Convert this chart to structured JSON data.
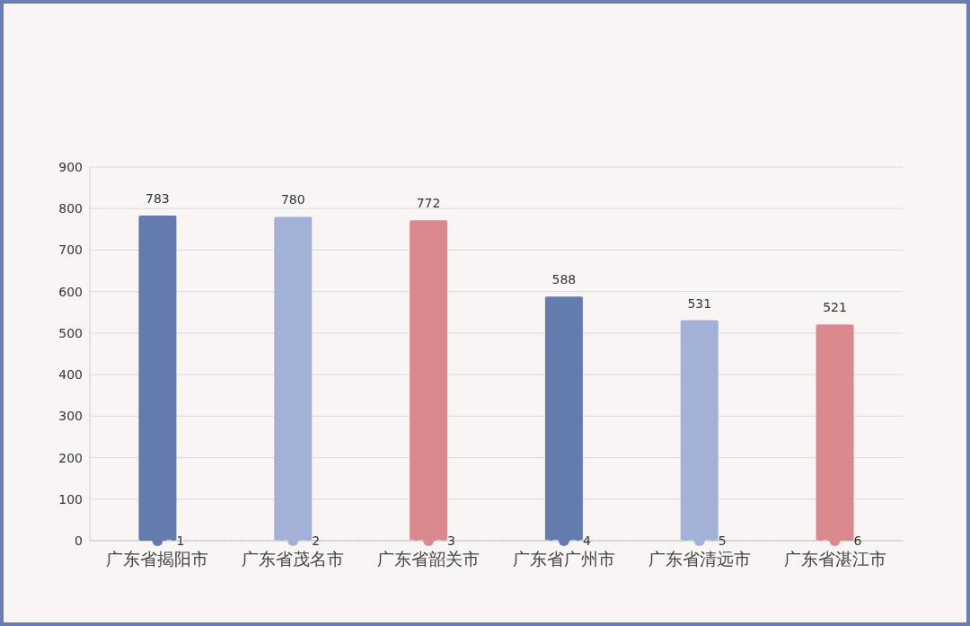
{
  "chart_data": {
    "type": "bar",
    "categories": [
      "广东省揭阳市",
      "广东省茂名市",
      "广东省韶关市",
      "广东省广州市",
      "广东省清远市",
      "广东省湛江市"
    ],
    "series": [
      {
        "colors": [
          "#637bad",
          "#a3b1d6",
          "#da898e",
          "#637bad",
          "#a3b1d6",
          "#da898e"
        ],
        "values": [
          783,
          780,
          772,
          588,
          531,
          521
        ]
      },
      {
        "type": "line",
        "colors": [
          "#637bad",
          "#a3b1d6",
          "#da898e",
          "#637bad",
          "#a3b1d6",
          "#da898e"
        ],
        "color": "#d3d3d3",
        "line_style": "dashed",
        "marker": "circle",
        "values": [
          0,
          0,
          0,
          0,
          0,
          0
        ],
        "value_labels": [
          null,
          null,
          null,
          null,
          null,
          null
        ]
      }
    ],
    "annotations": [
      {
        "text": "1",
        "x": "广东省揭阳市",
        "y": 0
      },
      {
        "text": "2",
        "x": "广东省茂名市",
        "y": 0
      },
      {
        "text": "3",
        "x": "广东省韶关市",
        "y": 0
      },
      {
        "text": "4",
        "x": "广东省广州市",
        "y": 0
      },
      {
        "text": "5",
        "x": "广东省清远市",
        "y": 0
      },
      {
        "text": "6",
        "x": "广东省湛江市",
        "y": 0
      }
    ],
    "data_labels": true,
    "ylim": [
      0,
      900
    ],
    "yticks": [
      0,
      100,
      200,
      300,
      400,
      500,
      600,
      700,
      800,
      900
    ],
    "grid": "y"
  }
}
